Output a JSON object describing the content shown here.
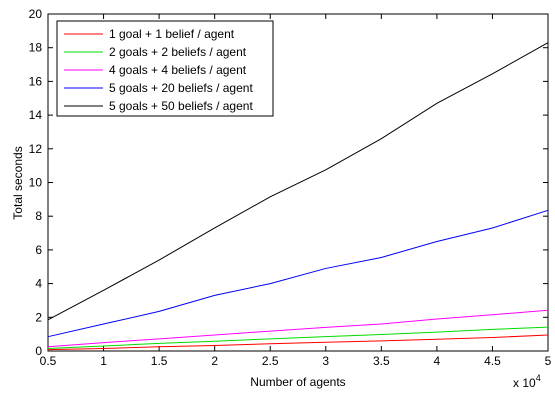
{
  "chart_data": {
    "type": "line",
    "title": "",
    "xlabel": "Number of agents",
    "ylabel": "Total seconds",
    "x_exponent_label": "x 10",
    "x_exponent_power": "4",
    "xlim": [
      0.5,
      5
    ],
    "ylim": [
      0,
      20
    ],
    "x_ticks": [
      "0.5",
      "1",
      "1.5",
      "2",
      "2.5",
      "3",
      "3.5",
      "4",
      "4.5",
      "5"
    ],
    "y_ticks": [
      "0",
      "2",
      "4",
      "6",
      "8",
      "10",
      "12",
      "14",
      "16",
      "18",
      "20"
    ],
    "grid": false,
    "legend_position": "top-left",
    "x": [
      0.5,
      1,
      1.5,
      2,
      2.5,
      3,
      3.5,
      4,
      4.5,
      5
    ],
    "series": [
      {
        "name": "1 goal + 1 belief / agent",
        "color": "#ff0000",
        "values": [
          0.08,
          0.15,
          0.25,
          0.33,
          0.43,
          0.52,
          0.6,
          0.7,
          0.8,
          0.95
        ]
      },
      {
        "name": "2 goals + 2 beliefs / agent",
        "color": "#00dd00",
        "values": [
          0.15,
          0.3,
          0.45,
          0.58,
          0.72,
          0.85,
          0.98,
          1.12,
          1.28,
          1.42
        ]
      },
      {
        "name": "4 goals + 4 beliefs / agent",
        "color": "#ff00ff",
        "values": [
          0.25,
          0.5,
          0.72,
          0.95,
          1.18,
          1.4,
          1.6,
          1.9,
          2.15,
          2.42
        ]
      },
      {
        "name": "5 goals + 20 beliefs / agent",
        "color": "#0000ff",
        "values": [
          0.85,
          1.6,
          2.35,
          3.3,
          4.0,
          4.9,
          5.55,
          6.5,
          7.3,
          8.35
        ]
      },
      {
        "name": "5 goals + 50 beliefs / agent",
        "color": "#000000",
        "values": [
          1.85,
          3.6,
          5.4,
          7.3,
          9.15,
          10.75,
          12.6,
          14.7,
          16.45,
          18.3
        ]
      }
    ]
  }
}
